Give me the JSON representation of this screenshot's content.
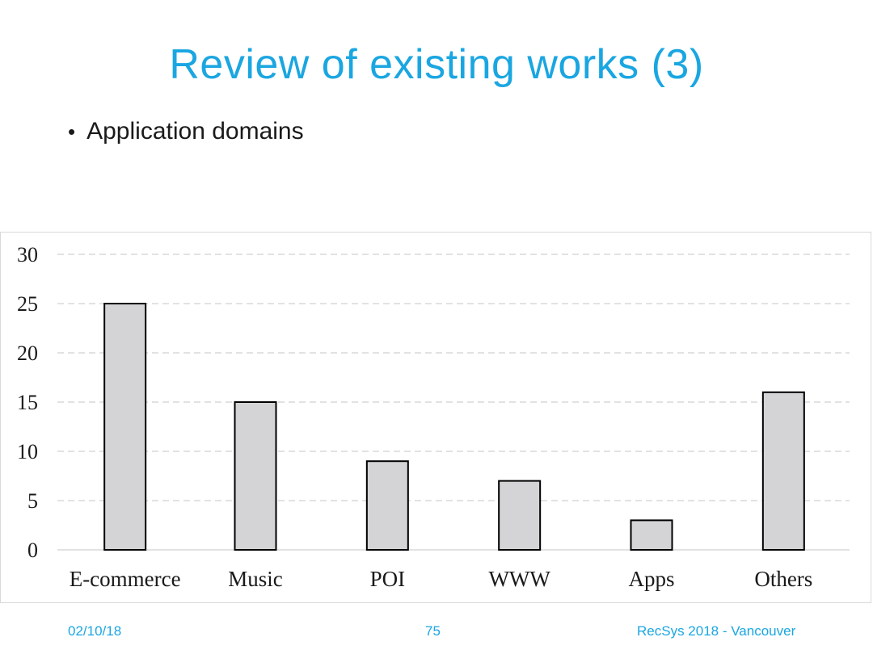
{
  "slide": {
    "title": "Review of existing works (3)",
    "bullet": "Application domains"
  },
  "footer": {
    "date": "02/10/18",
    "page": "75",
    "conference": "RecSys 2018 - Vancouver"
  },
  "chart_data": {
    "type": "bar",
    "categories": [
      "E-commerce",
      "Music",
      "POI",
      "WWW",
      "Apps",
      "Others"
    ],
    "values": [
      25,
      15,
      9,
      7,
      3,
      16
    ],
    "title": "",
    "xlabel": "",
    "ylabel": "",
    "ylim": [
      0,
      30
    ],
    "yticks": [
      0,
      5,
      10,
      15,
      20,
      25,
      30
    ],
    "grid": true,
    "legend": "none",
    "bar_color": "#d4d3d6",
    "bar_edge_color": "#000000"
  }
}
